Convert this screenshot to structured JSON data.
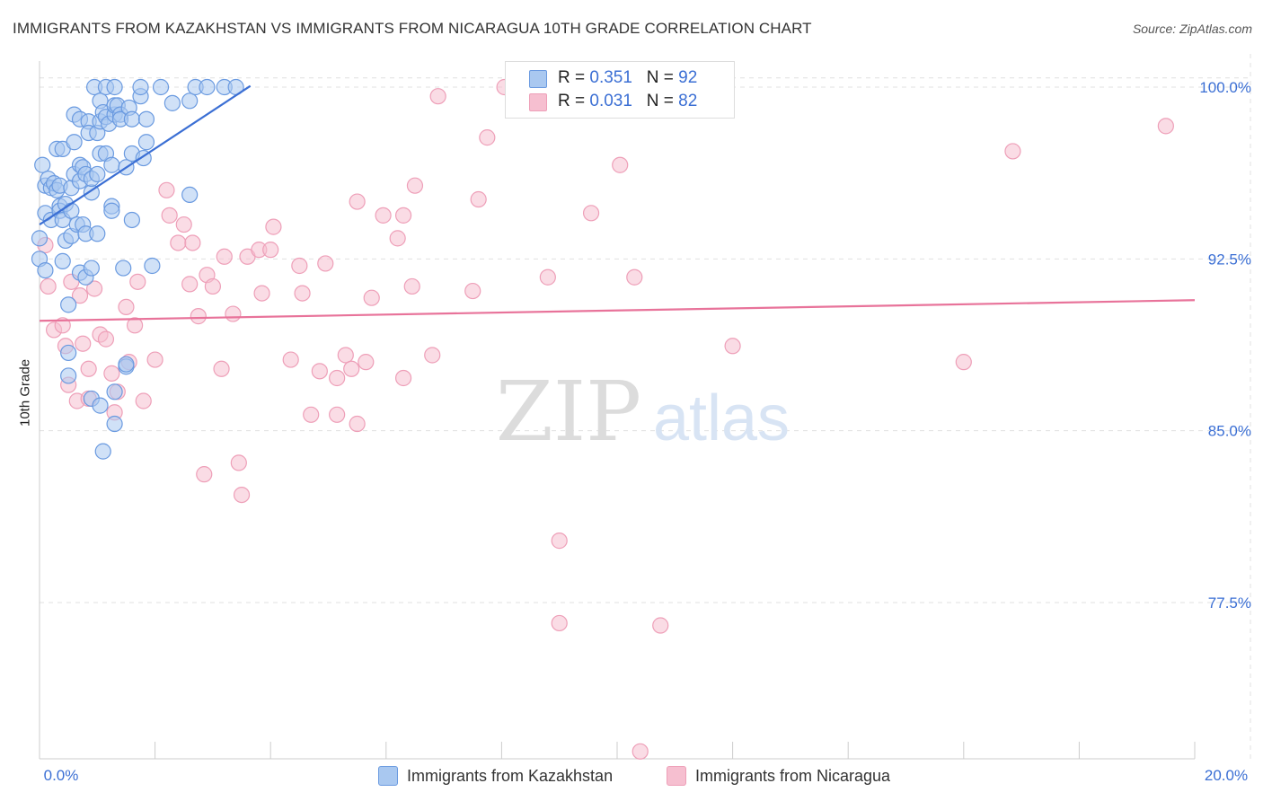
{
  "title": "IMMIGRANTS FROM KAZAKHSTAN VS IMMIGRANTS FROM NICARAGUA 10TH GRADE CORRELATION CHART",
  "source": "Source: ZipAtlas.com",
  "watermark": {
    "zip": "ZIP",
    "atlas": "atlas"
  },
  "colors": {
    "blue": "#3b6fd4",
    "blue_fill": "#a9c8f0",
    "blue_edge": "#6a9ae0",
    "pink": "#e8739a",
    "pink_fill": "#f6bfd0",
    "pink_edge": "#ee9fb8",
    "grid": "#e0e0e0",
    "axis_text": "#3b6fd4"
  },
  "legend": {
    "kazakhstan": {
      "r_label": "R = ",
      "r_value": "0.351",
      "n_label": "N = ",
      "n_value": "92"
    },
    "nicaragua": {
      "r_label": "R = ",
      "r_value": "0.031",
      "n_label": "N = ",
      "n_value": "82"
    }
  },
  "bottom_legend": {
    "kazakhstan": "Immigrants from Kazakhstan",
    "nicaragua": "Immigrants from Nicaragua"
  },
  "chart_data": {
    "type": "scatter",
    "title": "IMMIGRANTS FROM KAZAKHSTAN VS IMMIGRANTS FROM NICARAGUA 10TH GRADE CORRELATION CHART",
    "xlabel": "",
    "ylabel": "10th Grade",
    "xlim": [
      0.0,
      20.0
    ],
    "ylim": [
      70.0,
      101.0
    ],
    "x_tick_labels": [
      "0.0%",
      "20.0%"
    ],
    "y_ticks": [
      77.5,
      85.0,
      92.5,
      100.0
    ],
    "y_tick_labels": [
      "77.5%",
      "85.0%",
      "92.5%",
      "100.0%"
    ],
    "grid": true,
    "series": [
      {
        "name": "Immigrants from Kazakhstan",
        "color": "blue",
        "trend": {
          "x": [
            0.0,
            3.65
          ],
          "y": [
            94.0,
            100.05
          ]
        },
        "points": [
          [
            0.0,
            93.4
          ],
          [
            0.0,
            92.5
          ],
          [
            0.05,
            96.6
          ],
          [
            0.1,
            95.7
          ],
          [
            0.1,
            94.5
          ],
          [
            0.1,
            92.0
          ],
          [
            0.15,
            96.0
          ],
          [
            0.2,
            95.6
          ],
          [
            0.2,
            94.2
          ],
          [
            0.25,
            95.8
          ],
          [
            0.3,
            97.3
          ],
          [
            0.3,
            95.5
          ],
          [
            0.35,
            94.8
          ],
          [
            0.35,
            94.6
          ],
          [
            0.35,
            95.7
          ],
          [
            0.4,
            97.3
          ],
          [
            0.4,
            94.2
          ],
          [
            0.4,
            92.4
          ],
          [
            0.45,
            93.3
          ],
          [
            0.45,
            94.9
          ],
          [
            0.5,
            90.5
          ],
          [
            0.5,
            88.4
          ],
          [
            0.5,
            87.4
          ],
          [
            0.55,
            94.6
          ],
          [
            0.55,
            93.5
          ],
          [
            0.55,
            95.6
          ],
          [
            0.6,
            98.8
          ],
          [
            0.6,
            96.2
          ],
          [
            0.6,
            97.6
          ],
          [
            0.65,
            94.0
          ],
          [
            0.7,
            98.6
          ],
          [
            0.7,
            96.6
          ],
          [
            0.7,
            95.9
          ],
          [
            0.7,
            91.9
          ],
          [
            0.75,
            96.5
          ],
          [
            0.75,
            94.0
          ],
          [
            0.8,
            93.6
          ],
          [
            0.8,
            96.2
          ],
          [
            0.8,
            91.7
          ],
          [
            0.85,
            98.5
          ],
          [
            0.85,
            98.0
          ],
          [
            0.9,
            95.4
          ],
          [
            0.9,
            96.0
          ],
          [
            0.9,
            92.1
          ],
          [
            0.9,
            86.4
          ],
          [
            0.95,
            100.0
          ],
          [
            1.0,
            98.0
          ],
          [
            1.0,
            96.2
          ],
          [
            1.0,
            93.6
          ],
          [
            1.05,
            99.4
          ],
          [
            1.05,
            98.5
          ],
          [
            1.05,
            97.1
          ],
          [
            1.05,
            86.1
          ],
          [
            1.1,
            84.1
          ],
          [
            1.1,
            98.9
          ],
          [
            1.15,
            97.1
          ],
          [
            1.15,
            100.0
          ],
          [
            1.15,
            98.7
          ],
          [
            1.2,
            98.4
          ],
          [
            1.25,
            96.6
          ],
          [
            1.25,
            94.8
          ],
          [
            1.25,
            94.6
          ],
          [
            1.3,
            98.8
          ],
          [
            1.3,
            99.2
          ],
          [
            1.3,
            100.0
          ],
          [
            1.3,
            86.7
          ],
          [
            1.3,
            85.3
          ],
          [
            1.35,
            99.2
          ],
          [
            1.4,
            98.8
          ],
          [
            1.4,
            98.6
          ],
          [
            1.45,
            92.1
          ],
          [
            1.5,
            96.5
          ],
          [
            1.5,
            87.8
          ],
          [
            1.5,
            87.9
          ],
          [
            1.55,
            99.1
          ],
          [
            1.6,
            94.2
          ],
          [
            1.6,
            97.1
          ],
          [
            1.6,
            98.6
          ],
          [
            1.75,
            99.6
          ],
          [
            1.75,
            100.0
          ],
          [
            1.8,
            96.9
          ],
          [
            1.85,
            97.6
          ],
          [
            1.85,
            98.6
          ],
          [
            1.95,
            92.2
          ],
          [
            2.1,
            100.0
          ],
          [
            2.3,
            99.3
          ],
          [
            2.6,
            99.4
          ],
          [
            2.6,
            95.3
          ],
          [
            2.7,
            100.0
          ],
          [
            2.9,
            100.0
          ],
          [
            3.2,
            100.0
          ],
          [
            3.4,
            100.0
          ]
        ]
      },
      {
        "name": "Immigrants from Nicaragua",
        "color": "pink",
        "trend": {
          "x": [
            0.0,
            20.0
          ],
          "y": [
            89.8,
            90.7
          ]
        },
        "points": [
          [
            0.1,
            93.1
          ],
          [
            0.15,
            91.3
          ],
          [
            0.25,
            89.4
          ],
          [
            0.4,
            89.6
          ],
          [
            0.45,
            88.7
          ],
          [
            0.5,
            87.0
          ],
          [
            0.55,
            91.5
          ],
          [
            0.65,
            86.3
          ],
          [
            0.7,
            90.9
          ],
          [
            0.75,
            88.8
          ],
          [
            0.85,
            86.4
          ],
          [
            0.85,
            87.7
          ],
          [
            0.95,
            91.2
          ],
          [
            1.05,
            89.2
          ],
          [
            1.15,
            89.0
          ],
          [
            1.25,
            87.5
          ],
          [
            1.3,
            85.8
          ],
          [
            1.35,
            86.7
          ],
          [
            1.5,
            90.4
          ],
          [
            1.55,
            88.0
          ],
          [
            1.65,
            89.6
          ],
          [
            1.7,
            91.5
          ],
          [
            1.8,
            86.3
          ],
          [
            2.0,
            88.1
          ],
          [
            2.2,
            95.5
          ],
          [
            2.25,
            94.4
          ],
          [
            2.4,
            93.2
          ],
          [
            2.5,
            94.0
          ],
          [
            2.6,
            91.4
          ],
          [
            2.65,
            93.2
          ],
          [
            2.75,
            90.0
          ],
          [
            2.85,
            83.1
          ],
          [
            2.9,
            91.8
          ],
          [
            3.0,
            91.3
          ],
          [
            3.15,
            87.7
          ],
          [
            3.2,
            92.6
          ],
          [
            3.35,
            90.1
          ],
          [
            3.45,
            83.6
          ],
          [
            3.5,
            82.2
          ],
          [
            3.6,
            92.6
          ],
          [
            3.8,
            92.9
          ],
          [
            3.85,
            91.0
          ],
          [
            4.0,
            92.9
          ],
          [
            4.05,
            93.9
          ],
          [
            4.35,
            88.1
          ],
          [
            4.5,
            92.2
          ],
          [
            4.55,
            91.0
          ],
          [
            4.7,
            85.7
          ],
          [
            4.85,
            87.6
          ],
          [
            4.95,
            92.3
          ],
          [
            5.15,
            87.3
          ],
          [
            5.15,
            85.7
          ],
          [
            5.3,
            88.3
          ],
          [
            5.4,
            87.7
          ],
          [
            5.5,
            85.3
          ],
          [
            5.5,
            95.0
          ],
          [
            5.65,
            88.0
          ],
          [
            5.75,
            90.8
          ],
          [
            5.95,
            94.4
          ],
          [
            6.2,
            93.4
          ],
          [
            6.3,
            94.4
          ],
          [
            6.3,
            87.3
          ],
          [
            6.45,
            91.3
          ],
          [
            6.5,
            95.7
          ],
          [
            6.8,
            88.3
          ],
          [
            6.9,
            99.6
          ],
          [
            7.5,
            91.1
          ],
          [
            7.6,
            95.1
          ],
          [
            7.75,
            97.8
          ],
          [
            8.05,
            100.0
          ],
          [
            8.8,
            91.7
          ],
          [
            9.0,
            80.2
          ],
          [
            9.0,
            76.6
          ],
          [
            9.55,
            94.5
          ],
          [
            10.05,
            96.6
          ],
          [
            10.3,
            91.7
          ],
          [
            10.4,
            71.0
          ],
          [
            10.75,
            76.5
          ],
          [
            12.0,
            88.7
          ],
          [
            16.0,
            88.0
          ],
          [
            16.85,
            97.2
          ],
          [
            19.5,
            98.3
          ]
        ]
      }
    ]
  }
}
